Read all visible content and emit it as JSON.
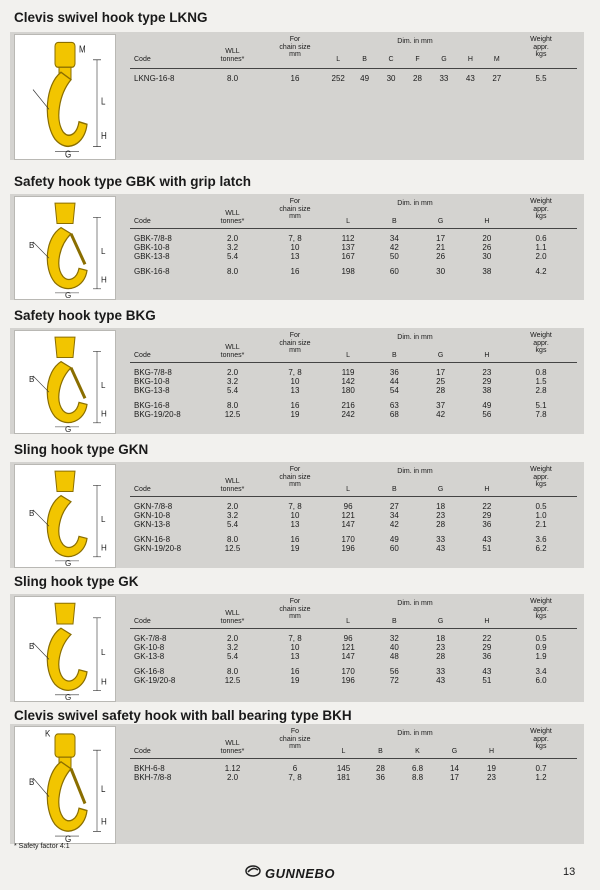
{
  "sections": [
    {
      "title": "Clevis swivel hook type LKNG",
      "headers": {
        "code": "Code",
        "wll": "WLL\ntonnes*",
        "chain": "For\nchain size\nmm",
        "dim": "Dim. in mm",
        "dims": [
          "L",
          "B",
          "C",
          "F",
          "G",
          "H",
          "M"
        ],
        "weight": "Weight\nappr.\nkgs"
      },
      "diagram_labels": [
        "M",
        "L",
        "H",
        "G"
      ],
      "rows": [
        {
          "code": "LKNG-16-8",
          "wll": "8.0",
          "chain": "16",
          "dims": [
            "252",
            "49",
            "30",
            "28",
            "33",
            "43",
            "27"
          ],
          "weight": "5.5"
        }
      ]
    },
    {
      "title": "Safety hook type GBK with grip latch",
      "headers": {
        "code": "Code",
        "wll": "WLL\ntonnes*",
        "chain": "For\nchain size\nmm",
        "dim": "Dim. in mm",
        "dims": [
          "L",
          "B",
          "G",
          "H"
        ],
        "weight": "Weight\nappr.\nkgs"
      },
      "diagram_labels": [
        "B",
        "L",
        "H",
        "G"
      ],
      "rows": [
        {
          "code": "GBK-7/8-8",
          "wll": "2.0",
          "chain": "7, 8",
          "dims": [
            "112",
            "34",
            "17",
            "20"
          ],
          "weight": "0.6"
        },
        {
          "code": "GBK-10-8",
          "wll": "3.2",
          "chain": "10",
          "dims": [
            "137",
            "42",
            "21",
            "26"
          ],
          "weight": "1.1"
        },
        {
          "code": "GBK-13-8",
          "wll": "5.4",
          "chain": "13",
          "dims": [
            "167",
            "50",
            "26",
            "30"
          ],
          "weight": "2.0"
        },
        {
          "code": "GBK-16-8",
          "wll": "8.0",
          "chain": "16",
          "dims": [
            "198",
            "60",
            "30",
            "38"
          ],
          "weight": "4.2"
        }
      ]
    },
    {
      "title": "Safety hook type BKG",
      "headers": {
        "code": "Code",
        "wll": "WLL\ntonnes*",
        "chain": "For\nchain size\nmm",
        "dim": "Dim. in mm",
        "dims": [
          "L",
          "B",
          "G",
          "H"
        ],
        "weight": "Weight\nappr.\nkgs"
      },
      "diagram_labels": [
        "B",
        "L",
        "H",
        "G"
      ],
      "rows": [
        {
          "code": "BKG-7/8-8",
          "wll": "2.0",
          "chain": "7, 8",
          "dims": [
            "119",
            "36",
            "17",
            "23"
          ],
          "weight": "0.8"
        },
        {
          "code": "BKG-10-8",
          "wll": "3.2",
          "chain": "10",
          "dims": [
            "142",
            "44",
            "25",
            "29"
          ],
          "weight": "1.5"
        },
        {
          "code": "BKG-13-8",
          "wll": "5.4",
          "chain": "13",
          "dims": [
            "180",
            "54",
            "28",
            "38"
          ],
          "weight": "2.8"
        },
        {
          "code": "BKG-16-8",
          "wll": "8.0",
          "chain": "16",
          "dims": [
            "216",
            "63",
            "37",
            "49"
          ],
          "weight": "5.1"
        },
        {
          "code": "BKG-19/20-8",
          "wll": "12.5",
          "chain": "19",
          "dims": [
            "242",
            "68",
            "42",
            "56"
          ],
          "weight": "7.8"
        }
      ]
    },
    {
      "title": "Sling hook type GKN",
      "headers": {
        "code": "Code",
        "wll": "WLL\ntonnes*",
        "chain": "For\nchain size\nmm",
        "dim": "Dim. in mm",
        "dims": [
          "L",
          "B",
          "G",
          "H"
        ],
        "weight": "Weight\nappr.\nkgs"
      },
      "diagram_labels": [
        "B",
        "L",
        "H",
        "G"
      ],
      "rows": [
        {
          "code": "GKN-7/8-8",
          "wll": "2.0",
          "chain": "7, 8",
          "dims": [
            "96",
            "27",
            "18",
            "22"
          ],
          "weight": "0.5"
        },
        {
          "code": "GKN-10-8",
          "wll": "3.2",
          "chain": "10",
          "dims": [
            "121",
            "34",
            "23",
            "29"
          ],
          "weight": "1.0"
        },
        {
          "code": "GKN-13-8",
          "wll": "5.4",
          "chain": "13",
          "dims": [
            "147",
            "42",
            "28",
            "36"
          ],
          "weight": "2.1"
        },
        {
          "code": "GKN-16-8",
          "wll": "8.0",
          "chain": "16",
          "dims": [
            "170",
            "49",
            "33",
            "43"
          ],
          "weight": "3.6"
        },
        {
          "code": "GKN-19/20-8",
          "wll": "12.5",
          "chain": "19",
          "dims": [
            "196",
            "60",
            "43",
            "51"
          ],
          "weight": "6.2"
        }
      ]
    },
    {
      "title": "Sling hook type GK",
      "headers": {
        "code": "Code",
        "wll": "WLL\ntonnes*",
        "chain": "For\nchain size\nmm",
        "dim": "Dim. in mm",
        "dims": [
          "L",
          "B",
          "G",
          "H"
        ],
        "weight": "Weight\nappr.\nkgs"
      },
      "diagram_labels": [
        "B",
        "L",
        "H",
        "G"
      ],
      "rows": [
        {
          "code": "GK-7/8-8",
          "wll": "2.0",
          "chain": "7, 8",
          "dims": [
            "96",
            "32",
            "18",
            "22"
          ],
          "weight": "0.5"
        },
        {
          "code": "GK-10-8",
          "wll": "3.2",
          "chain": "10",
          "dims": [
            "121",
            "40",
            "23",
            "29"
          ],
          "weight": "0.9"
        },
        {
          "code": "GK-13-8",
          "wll": "5.4",
          "chain": "13",
          "dims": [
            "147",
            "48",
            "28",
            "36"
          ],
          "weight": "1.9"
        },
        {
          "code": "GK-16-8",
          "wll": "8.0",
          "chain": "16",
          "dims": [
            "170",
            "56",
            "33",
            "43"
          ],
          "weight": "3.4"
        },
        {
          "code": "GK-19/20-8",
          "wll": "12.5",
          "chain": "19",
          "dims": [
            "196",
            "72",
            "43",
            "51"
          ],
          "weight": "6.0"
        }
      ]
    },
    {
      "title": "Clevis swivel safety hook with ball bearing type BKH",
      "headers": {
        "code": "Code",
        "wll": "WLL\ntonnes*",
        "chain": "Fo\nchain size\nmm",
        "dim": "Dim. in mm",
        "dims": [
          "L",
          "B",
          "K",
          "G",
          "H"
        ],
        "weight": "Weight\nappr.\nkgs"
      },
      "diagram_labels": [
        "K",
        "B",
        "L",
        "H",
        "G"
      ],
      "rows": [
        {
          "code": "BKH-6-8",
          "wll": "1.12",
          "chain": "6",
          "dims": [
            "145",
            "28",
            "6.8",
            "14",
            "19"
          ],
          "weight": "0.7"
        },
        {
          "code": "BKH-7/8-8",
          "wll": "2.0",
          "chain": "7, 8",
          "dims": [
            "181",
            "36",
            "8.8",
            "17",
            "23"
          ],
          "weight": "1.2"
        }
      ]
    }
  ],
  "footnote": "* Safety factor 4:1",
  "brand": "GUNNEBO",
  "page_number": "13",
  "colors": {
    "hook": "#f2c500",
    "hook_edge": "#8a6e00",
    "band": "#d4d3d0"
  }
}
